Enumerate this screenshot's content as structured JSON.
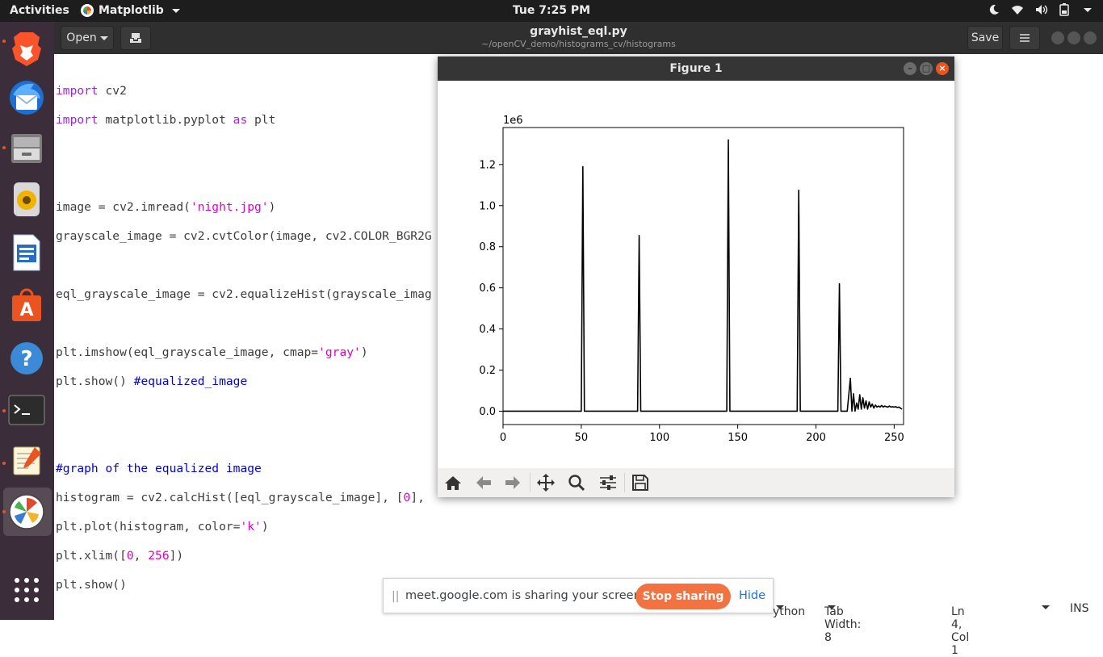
{
  "topbar": {
    "activities": "Activities",
    "app_name": "Matplotlib",
    "clock": "Tue  7:25 PM"
  },
  "dock": {
    "items": [
      "brave-browser",
      "thunderbird",
      "files",
      "rhythmbox",
      "libreoffice-writer",
      "software-center",
      "help",
      "terminal",
      "text-editor",
      "matplotlib"
    ]
  },
  "editor": {
    "open_label": "Open",
    "save_label": "Save",
    "title": "grayhist_eql.py",
    "subtitle": "~/openCV_demo/histograms_cv/histograms"
  },
  "code": {
    "l1_kw": "import",
    "l1_rest": " cv2",
    "l2_kw": "import",
    "l2_mid": " matplotlib.pyplot ",
    "l2_kw2": "as",
    "l2_rest": " plt",
    "l3_a": "image = cv2.imread(",
    "l3_str": "'night.jpg'",
    "l3_b": ")",
    "l4": "grayscale_image = cv2.cvtColor(image, cv2.COLOR_BGR2G",
    "l5": "eql_grayscale_image = cv2.equalizeHist(grayscale_imag",
    "l6_a": "plt.imshow(eql_grayscale_image, cmap=",
    "l6_str": "'gray'",
    "l6_b": ")",
    "l7_a": "plt.show() ",
    "l7_cm": "#equalized_image",
    "l8_cm": "#graph of the equalized image",
    "l9_a": "histogram = cv2.calcHist([eql_grayscale_image], [",
    "l9_num": "0",
    "l9_b": "],",
    "l10_a": "plt.plot(histogram, color=",
    "l10_str": "'k'",
    "l10_b": ")",
    "l11_a": "plt.xlim([",
    "l11_n1": "0",
    "l11_c": ", ",
    "l11_n2": "256",
    "l11_b": "])",
    "l12": "plt.show()"
  },
  "status": {
    "language": "ython",
    "tab_width": "Tab Width: 8",
    "position": "Ln 4, Col 1",
    "mode": "INS"
  },
  "figure": {
    "title": "Figure 1",
    "toolbar": [
      "home-icon",
      "back-arrow-icon",
      "forward-arrow-icon",
      "pan-icon",
      "zoom-icon",
      "configure-subplots-icon",
      "save-icon"
    ]
  },
  "chart_data": {
    "type": "line",
    "title": "",
    "xlabel": "",
    "ylabel": "",
    "offset_label": "1e6",
    "xlim": [
      0,
      256
    ],
    "ylim": [
      -0.065,
      1.38
    ],
    "xticks": [
      0,
      50,
      100,
      150,
      200,
      250
    ],
    "yticks": [
      0.0,
      0.2,
      0.4,
      0.6,
      0.8,
      1.0,
      1.2
    ],
    "ytick_labels": [
      "0.0",
      "0.2",
      "0.4",
      "0.6",
      "0.8",
      "1.0",
      "1.2"
    ],
    "line_color": "#000000",
    "grid": false,
    "series": [
      {
        "x": [
          0,
          50,
          51,
          52,
          86,
          87,
          88,
          143,
          144,
          145,
          188,
          189,
          190,
          214,
          215,
          216,
          220,
          222,
          223,
          224,
          225,
          226,
          227,
          228,
          229,
          230,
          231,
          232,
          233,
          234,
          235,
          236,
          237,
          238,
          239,
          240,
          241,
          242,
          243,
          244,
          245,
          246,
          247,
          248,
          249,
          250,
          251,
          252,
          253,
          254,
          255
        ],
        "y": [
          0,
          0,
          1.19,
          0,
          0,
          0.855,
          0,
          0,
          1.32,
          0,
          0,
          1.075,
          0,
          0,
          0.62,
          0,
          0,
          0.16,
          0,
          0.085,
          0,
          0.04,
          0.01,
          0.08,
          0.01,
          0.065,
          0.015,
          0.05,
          0.01,
          0.045,
          0.02,
          0.035,
          0.015,
          0.03,
          0.02,
          0.025,
          0.02,
          0.028,
          0.02,
          0.025,
          0.022,
          0.02,
          0.025,
          0.02,
          0.022,
          0.02,
          0.022,
          0.018,
          0.02,
          0.015,
          0.01
        ]
      }
    ]
  }
}
